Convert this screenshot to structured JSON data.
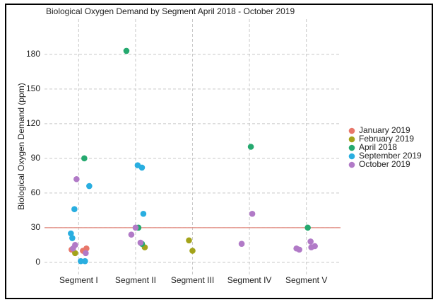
{
  "chart_data": {
    "type": "scatter",
    "title": "Biological Oxygen Demand by Segment April 2018 - October 2019",
    "y_label": "Biological Oxygen Demand (ppm)",
    "categories": [
      "Segment I",
      "Segment II",
      "Segment III",
      "Segment IV",
      "Segment V"
    ],
    "ylim": [
      -10.5,
      210.5
    ],
    "yticks": [
      0,
      30,
      60,
      90,
      120,
      150,
      180
    ],
    "grid": true,
    "hline": 30,
    "hline_color": "#e0857a",
    "legend": "right",
    "series": [
      {
        "name": "January 2019",
        "color": "#e8776a",
        "x": [
          "Segment I",
          "Segment I",
          "Segment I"
        ],
        "values": [
          11,
          10,
          12
        ]
      },
      {
        "name": "February 2019",
        "color": "#a3a31a",
        "x": [
          "Segment I",
          "Segment II",
          "Segment III",
          "Segment III"
        ],
        "values": [
          8,
          13,
          19,
          10
        ]
      },
      {
        "name": "April 2018",
        "color": "#25a96f",
        "x": [
          "Segment I",
          "Segment II",
          "Segment II",
          "Segment II",
          "Segment IV",
          "Segment V"
        ],
        "values": [
          90,
          183,
          30,
          16,
          100,
          30
        ]
      },
      {
        "name": "September 2019",
        "color": "#29aee0",
        "x": [
          "Segment I",
          "Segment I",
          "Segment I",
          "Segment I",
          "Segment I",
          "Segment I",
          "Segment II",
          "Segment II",
          "Segment II"
        ],
        "values": [
          46,
          66,
          25,
          21,
          1,
          1,
          84,
          82,
          42
        ]
      },
      {
        "name": "October 2019",
        "color": "#b17ac7",
        "x": [
          "Segment I",
          "Segment I",
          "Segment I",
          "Segment I",
          "Segment II",
          "Segment II",
          "Segment II",
          "Segment IV",
          "Segment IV",
          "Segment V",
          "Segment V",
          "Segment V",
          "Segment V",
          "Segment V"
        ],
        "values": [
          72,
          15,
          12,
          8,
          30,
          24,
          17,
          42,
          16,
          18,
          13,
          14,
          12,
          11
        ]
      }
    ]
  }
}
